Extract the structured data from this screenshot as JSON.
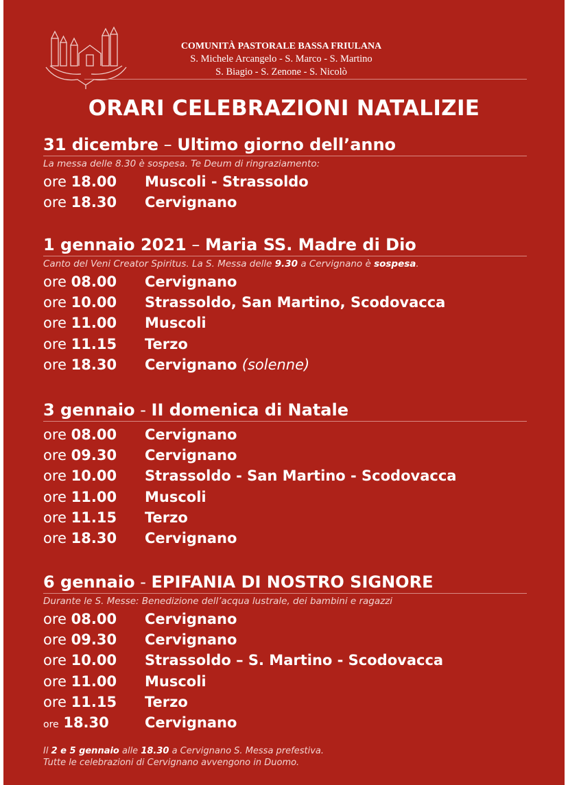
{
  "colors": {
    "background": "#ae2219",
    "text": "#ffffff"
  },
  "header": {
    "logo_icon": "church-in-hands-logo",
    "org_name": "COMUNITÀ PASTORALE BASSA FRIULANA",
    "parishes_line1": "S. Michele Arcangelo - S. Marco - S. Martino",
    "parishes_line2": "S. Biagio - S. Zenone - S. Nicolò"
  },
  "title": "ORARI CELEBRAZIONI NATALIZIE",
  "sections": [
    {
      "date": "31 dicembre",
      "sep": " – ",
      "name": "Ultimo giorno dell’anno",
      "note": [
        {
          "text": "La messa delle 8.30 è sospesa. Te Deum di ringraziamento:"
        }
      ],
      "rows": [
        {
          "ore": "ore",
          "time": "18.00",
          "place": [
            {
              "text": "Muscoli - Strassoldo"
            }
          ]
        },
        {
          "ore": "ore",
          "time": "18.30",
          "place": [
            {
              "text": "Cervignano"
            }
          ]
        }
      ]
    },
    {
      "date": "1 gennaio 2021",
      "sep": " – ",
      "name": "Maria SS. Madre di Dio",
      "note": [
        {
          "text": "Canto del Veni Creator Spiritus. La S. Messa delle "
        },
        {
          "text": "9.30",
          "bold": true
        },
        {
          "text": " a Cervignano è "
        },
        {
          "text": "sospesa",
          "bold": true
        },
        {
          "text": "."
        }
      ],
      "rows": [
        {
          "ore": "ore",
          "time": "08.00",
          "place": [
            {
              "text": "Cervignano"
            }
          ]
        },
        {
          "ore": "ore",
          "time": "10.00",
          "place": [
            {
              "text": "Strassoldo, San Martino, Scodovacca"
            }
          ]
        },
        {
          "ore": "ore",
          "time": "11.00",
          "place": [
            {
              "text": "Muscoli"
            }
          ]
        },
        {
          "ore": "ore",
          "time": "11.15",
          "place": [
            {
              "text": "Terzo"
            }
          ]
        },
        {
          "ore": "ore",
          "time": "18.30",
          "place": [
            {
              "text": "Cervignano "
            },
            {
              "text": "(solenne)",
              "italic": true
            }
          ]
        }
      ]
    },
    {
      "date": "3 gennaio",
      "sep": " - ",
      "name": "II domenica di Natale",
      "note": [],
      "rows": [
        {
          "ore": "ore",
          "time": "08.00",
          "place": [
            {
              "text": "Cervignano"
            }
          ]
        },
        {
          "ore": "ore",
          "time": "09.30",
          "place": [
            {
              "text": "Cervignano"
            }
          ]
        },
        {
          "ore": "ore",
          "time": "10.00",
          "place": [
            {
              "text": "Strassoldo - San Martino - Scodovacca"
            }
          ]
        },
        {
          "ore": "ore",
          "time": "11.00",
          "place": [
            {
              "text": "Muscoli"
            }
          ]
        },
        {
          "ore": "ore",
          "time": "11.15",
          "place": [
            {
              "text": "Terzo"
            }
          ]
        },
        {
          "ore": "ore",
          "time": "18.30",
          "place": [
            {
              "text": "Cervignano"
            }
          ]
        }
      ]
    },
    {
      "date": "6 gennaio",
      "sep": " - ",
      "name": "EPIFANIA DI NOSTRO SIGNORE",
      "note": [
        {
          "text": "Durante le S. Messe: Benedizione dell’acqua lustrale, dei bambini e ragazzi"
        }
      ],
      "rows": [
        {
          "ore": "ore",
          "time": "08.00",
          "place": [
            {
              "text": "Cervignano"
            }
          ]
        },
        {
          "ore": "ore",
          "time": "09.30",
          "place": [
            {
              "text": "Cervignano"
            }
          ]
        },
        {
          "ore": "ore",
          "time": "10.00",
          "place": [
            {
              "text": "Strassoldo – S. Martino - Scodovacca"
            }
          ]
        },
        {
          "ore": "ore",
          "time": "11.00",
          "place": [
            {
              "text": "Muscoli"
            }
          ]
        },
        {
          "ore": "ore",
          "time": "11.15",
          "place": [
            {
              "text": "Terzo"
            }
          ]
        },
        {
          "ore": "ore",
          "time": "18.30",
          "place": [
            {
              "text": "Cervignano"
            }
          ],
          "small_ore": true
        }
      ]
    }
  ],
  "footer": {
    "line1": [
      {
        "text": "Il "
      },
      {
        "text": "2 e 5 gennaio",
        "bold": true
      },
      {
        "text": " alle "
      },
      {
        "text": "18.30",
        "bold": true
      },
      {
        "text": " a Cervignano S. Messa prefestiva."
      }
    ],
    "line2": "Tutte le celebrazioni di Cervignano avvengono in Duomo."
  }
}
